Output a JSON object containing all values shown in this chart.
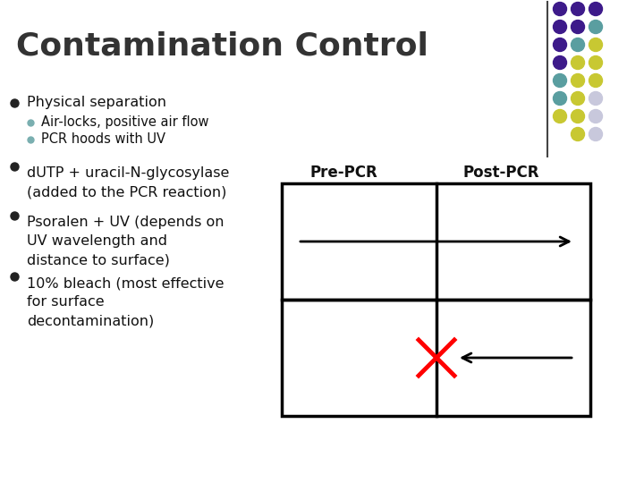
{
  "title": "Contamination Control",
  "title_color": "#333333",
  "title_fontsize": 26,
  "bg_color": "#FFFFFF",
  "bullet1": "Physical separation",
  "sub_bullet1a": "Air-locks, positive air flow",
  "sub_bullet1b": "PCR hoods with UV",
  "bullet2": "dUTP + uracil-N-glycosylase\n(added to the PCR reaction)",
  "bullet3": "Psoralen + UV (depends on\nUV wavelength and\ndistance to surface)",
  "bullet4": "10% bleach (most effective\nfor surface\ndecontamination)",
  "bullet_color": "#222222",
  "sub_bullet_color": "#7AAFB0",
  "text_color": "#111111",
  "label_prepcr": "Pre-PCR",
  "label_postpcr": "Post-PCR",
  "label_fontsize": 12,
  "dot_colors": [
    [
      "#3D1A8A",
      "#3D1A8A",
      "#3D1A8A"
    ],
    [
      "#3D1A8A",
      "#3D1A8A",
      "#5A9EA0"
    ],
    [
      "#3D1A8A",
      "#5A9EA0",
      "#C8C832"
    ],
    [
      "#3D1A8A",
      "#C8C832",
      "#C8C832"
    ],
    [
      "#5A9EA0",
      "#C8C832",
      "#C8C832"
    ],
    [
      "#5A9EA0",
      "#C8C832",
      "#C8C8DC"
    ],
    [
      "#C8C832",
      "#C8C832",
      "#C8C8DC"
    ],
    [
      "",
      "#C8C832",
      "#C8C8DC"
    ]
  ]
}
